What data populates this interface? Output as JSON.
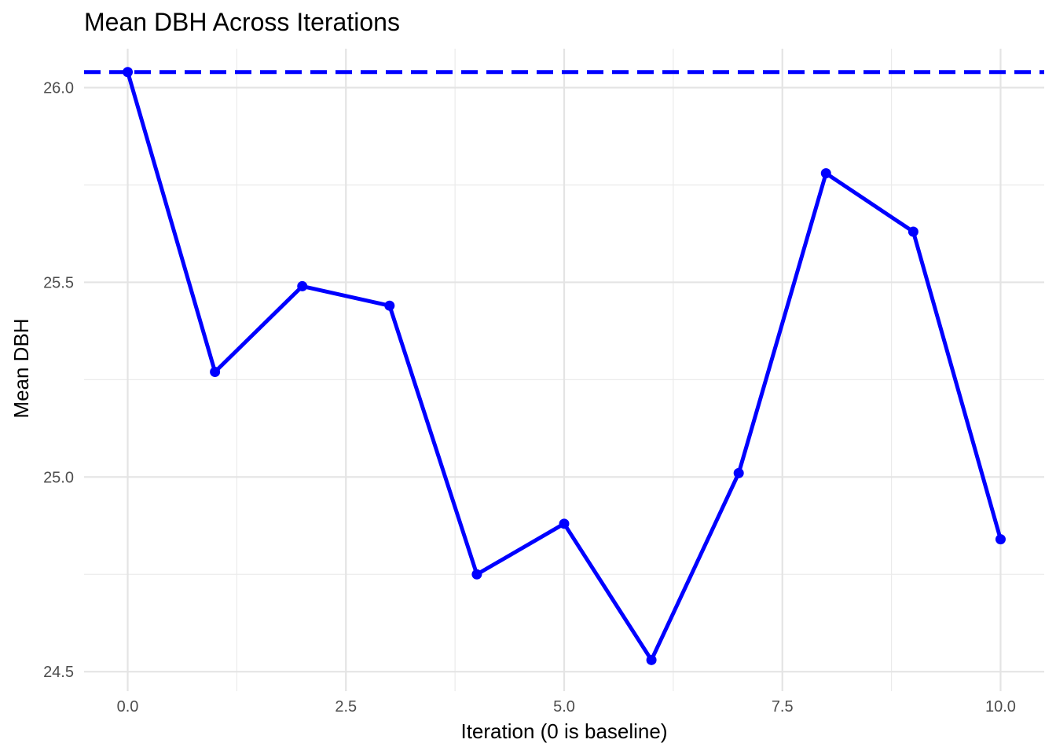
{
  "chart_data": {
    "type": "line",
    "title": "Mean DBH Across Iterations",
    "xlabel": "Iteration (0 is baseline)",
    "ylabel": "Mean DBH",
    "x": [
      0,
      1,
      2,
      3,
      4,
      5,
      6,
      7,
      8,
      9,
      10
    ],
    "series": [
      {
        "values": [
          26.04,
          25.27,
          25.49,
          25.44,
          24.75,
          24.88,
          24.53,
          25.01,
          25.78,
          25.63,
          24.84
        ],
        "color": "#0000ff",
        "marker": "circle"
      }
    ],
    "reference_line": {
      "y": 26.04,
      "style": "dashed",
      "color": "#0000ff"
    },
    "xlim": [
      -0.5,
      10.5
    ],
    "ylim": [
      24.45,
      26.1
    ],
    "xticks": [
      0,
      2.5,
      5,
      7.5,
      10
    ],
    "xtick_labels": [
      "0.0",
      "2.5",
      "5.0",
      "7.5",
      "10.0"
    ],
    "yticks": [
      24.5,
      25.0,
      25.5,
      26.0
    ],
    "ytick_labels": [
      "24.5",
      "25.0",
      "25.5",
      "26.0"
    ],
    "grid": true
  }
}
